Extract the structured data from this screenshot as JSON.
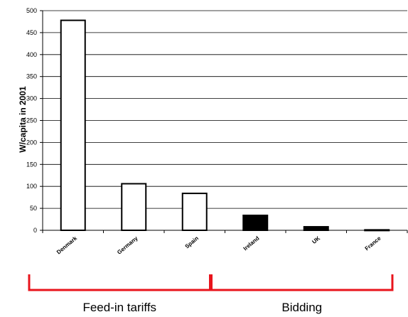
{
  "chart_data": {
    "type": "bar",
    "title": "",
    "xlabel": "",
    "ylabel": "W/capita in 2001",
    "ylim": [
      0,
      500
    ],
    "yticks": [
      0,
      50,
      100,
      150,
      200,
      250,
      300,
      350,
      400,
      450,
      500
    ],
    "grid": true,
    "categories": [
      "Denmark",
      "Germany",
      "Spain",
      "Ireland",
      "UK",
      "France"
    ],
    "values": [
      478,
      106,
      84,
      34,
      8,
      1
    ],
    "bar_fill": [
      "#ffffff",
      "#ffffff",
      "#ffffff",
      "#000000",
      "#000000",
      "#000000"
    ],
    "groups": [
      {
        "label": "Feed-in tariffs",
        "categories": [
          "Denmark",
          "Germany",
          "Spain"
        ],
        "bracket_color": "#e8141c"
      },
      {
        "label": "Bidding",
        "categories": [
          "Ireland",
          "UK",
          "France"
        ],
        "bracket_color": "#e8141c"
      }
    ]
  }
}
